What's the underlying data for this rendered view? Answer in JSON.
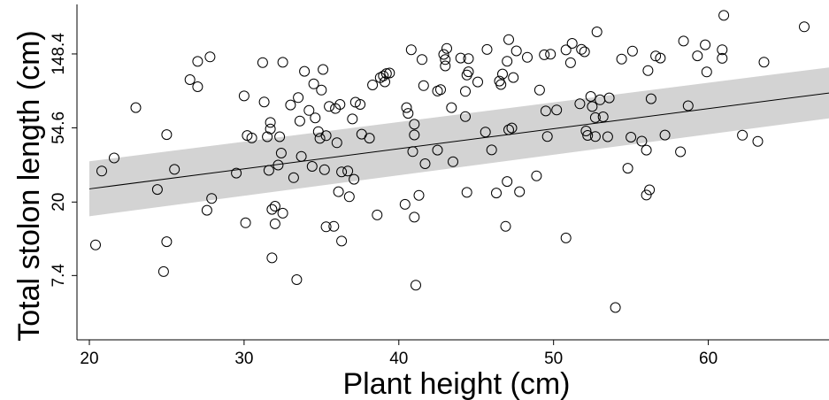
{
  "chart_data": {
    "type": "scatter",
    "title": "",
    "xlabel": "Plant height (cm)",
    "ylabel": "Total stolon length (cm)",
    "y_scale": "log",
    "xlim": [
      19.2,
      67.8
    ],
    "ylim": [
      3.1,
      290
    ],
    "x_ticks": [
      20,
      30,
      40,
      50,
      60
    ],
    "x_tick_labels": [
      "20",
      "30",
      "40",
      "50",
      "60"
    ],
    "y_ticks": [
      7.4,
      20,
      54.6,
      148.4
    ],
    "y_tick_labels": [
      "7.4",
      "20",
      "54.6",
      "148.4"
    ],
    "grid": false,
    "legend": "none",
    "colors": {
      "points": "#000000",
      "fit_line": "#000000",
      "confidence_band": "#d3d3d3"
    },
    "fit": {
      "type": "linear on log scale",
      "x": [
        20,
        67.8
      ],
      "y": [
        23.9,
        87.5
      ],
      "ci_lower": [
        16.5,
        62.1
      ],
      "ci_upper": [
        34.7,
        123.6
      ]
    },
    "points": [
      [
        20.4,
        11.2
      ],
      [
        20.8,
        30.4
      ],
      [
        21.6,
        36.3
      ],
      [
        23,
        71.8
      ],
      [
        24.4,
        23.7
      ],
      [
        24.8,
        7.8
      ],
      [
        25,
        11.7
      ],
      [
        25,
        49.8
      ],
      [
        25.5,
        31.1
      ],
      [
        26.5,
        104.8
      ],
      [
        27,
        95.2
      ],
      [
        27,
        134.1
      ],
      [
        27.6,
        17.9
      ],
      [
        27.8,
        142.5
      ],
      [
        27.9,
        21
      ],
      [
        29.5,
        29.6
      ],
      [
        30,
        84.1
      ],
      [
        30.1,
        15.1
      ],
      [
        30.2,
        49.2
      ],
      [
        30.5,
        47.6
      ],
      [
        31.2,
        132.1
      ],
      [
        31.3,
        77.5
      ],
      [
        31.5,
        48.4
      ],
      [
        31.6,
        30.7
      ],
      [
        31.7,
        58.7
      ],
      [
        31.7,
        53.8
      ],
      [
        31.8,
        9.4
      ],
      [
        31.8,
        18.1
      ],
      [
        32,
        14.9
      ],
      [
        32,
        18.9
      ],
      [
        32.2,
        33
      ],
      [
        32.3,
        48.4
      ],
      [
        32.4,
        38.8
      ],
      [
        32.5,
        17.2
      ],
      [
        32.5,
        132.5
      ],
      [
        33,
        74.4
      ],
      [
        33.2,
        27.8
      ],
      [
        33.4,
        7
      ],
      [
        33.5,
        82.2
      ],
      [
        33.6,
        59.9
      ],
      [
        33.7,
        37.1
      ],
      [
        33.9,
        117.3
      ],
      [
        34.2,
        69.1
      ],
      [
        34.4,
        32.4
      ],
      [
        34.5,
        99
      ],
      [
        34.6,
        62.5
      ],
      [
        34.8,
        51.9
      ],
      [
        34.9,
        47.3
      ],
      [
        35,
        91
      ],
      [
        35.1,
        120.2
      ],
      [
        35.2,
        31
      ],
      [
        35.3,
        14.3
      ],
      [
        35.3,
        49.1
      ],
      [
        35.5,
        72.9
      ],
      [
        35.8,
        14.4
      ],
      [
        35.9,
        70.9
      ],
      [
        36,
        44.6
      ],
      [
        36.1,
        23
      ],
      [
        36.2,
        74.9
      ],
      [
        36.3,
        30.1
      ],
      [
        36.3,
        11.8
      ],
      [
        36.7,
        30.4
      ],
      [
        36.8,
        21.5
      ],
      [
        37,
        61.6
      ],
      [
        37.1,
        27.2
      ],
      [
        37.2,
        77.2
      ],
      [
        37.5,
        74.9
      ],
      [
        37.6,
        50.1
      ],
      [
        38.1,
        47.5
      ],
      [
        38.3,
        97.5
      ],
      [
        38.6,
        16.8
      ],
      [
        38.8,
        107.7
      ],
      [
        39,
        110.3
      ],
      [
        39.1,
        101.7
      ],
      [
        39.2,
        113.8
      ],
      [
        39.4,
        114.7
      ],
      [
        40.4,
        19.4
      ],
      [
        40.5,
        71.8
      ],
      [
        40.6,
        66.4
      ],
      [
        40.8,
        157.1
      ],
      [
        40.9,
        39.6
      ],
      [
        41,
        16.3
      ],
      [
        41,
        49.6
      ],
      [
        41,
        57.3
      ],
      [
        41.1,
        6.5
      ],
      [
        41.3,
        21.9
      ],
      [
        41.5,
        137.6
      ],
      [
        41.6,
        96.6
      ],
      [
        41.7,
        33.6
      ],
      [
        42.5,
        89.8
      ],
      [
        42.5,
        40.4
      ],
      [
        42.7,
        91.5
      ],
      [
        42.9,
        147.5
      ],
      [
        43,
        126.1
      ],
      [
        43,
        137.6
      ],
      [
        43.1,
        159.9
      ],
      [
        43.4,
        71.8
      ],
      [
        43.5,
        34.5
      ],
      [
        44,
        140.4
      ],
      [
        44.3,
        89.4
      ],
      [
        44.3,
        63.6
      ],
      [
        44.4,
        111.7
      ],
      [
        44.4,
        22.8
      ],
      [
        44.5,
        116.6
      ],
      [
        44.5,
        139.3
      ],
      [
        45.1,
        101.6
      ],
      [
        45.6,
        51.6
      ],
      [
        45.7,
        157.6
      ],
      [
        46,
        40.5
      ],
      [
        46.3,
        22.6
      ],
      [
        46.5,
        102.8
      ],
      [
        46.6,
        98.1
      ],
      [
        46.7,
        113.1
      ],
      [
        46.9,
        14.4
      ],
      [
        47,
        26.4
      ],
      [
        47,
        134.5
      ],
      [
        47.1,
        53.2
      ],
      [
        47.1,
        180.3
      ],
      [
        47.3,
        54.5
      ],
      [
        47.4,
        107.8
      ],
      [
        47.6,
        154.7
      ],
      [
        47.8,
        23
      ],
      [
        48.3,
        141.9
      ],
      [
        48.9,
        28.5
      ],
      [
        49.1,
        91.1
      ],
      [
        49.4,
        146.7
      ],
      [
        49.5,
        68.6
      ],
      [
        49.6,
        48.6
      ],
      [
        49.8,
        147.9
      ],
      [
        50.2,
        69.6
      ],
      [
        50.8,
        12.3
      ],
      [
        50.8,
        156.7
      ],
      [
        51.1,
        131.7
      ],
      [
        51.2,
        171.3
      ],
      [
        51.7,
        75.6
      ],
      [
        51.8,
        157.8
      ],
      [
        52,
        152.9
      ],
      [
        52.1,
        52.3
      ],
      [
        52.2,
        49.3
      ],
      [
        52.4,
        83.5
      ],
      [
        52.5,
        72.8
      ],
      [
        52.7,
        48.6
      ],
      [
        52.7,
        62.7
      ],
      [
        52.8,
        200
      ],
      [
        53,
        79.8
      ],
      [
        53.2,
        63.4
      ],
      [
        53.5,
        48.4
      ],
      [
        53.6,
        81.9
      ],
      [
        54,
        4.8
      ],
      [
        54.4,
        138.5
      ],
      [
        54.8,
        31.6
      ],
      [
        55,
        48.1
      ],
      [
        55.1,
        154.2
      ],
      [
        55.7,
        45.6
      ],
      [
        56,
        40.4
      ],
      [
        56,
        22
      ],
      [
        56.1,
        118.5
      ],
      [
        56.2,
        23.6
      ],
      [
        56.3,
        80.9
      ],
      [
        56.6,
        144.2
      ],
      [
        56.9,
        140.4
      ],
      [
        57.2,
        49.5
      ],
      [
        58.2,
        39.5
      ],
      [
        58.4,
        176.7
      ],
      [
        58.7,
        73.6
      ],
      [
        59.3,
        144.6
      ],
      [
        59.8,
        167.9
      ],
      [
        59.9,
        116.3
      ],
      [
        60.9,
        157
      ],
      [
        60.9,
        139.8
      ],
      [
        61,
        250
      ],
      [
        62.2,
        49.4
      ],
      [
        63.2,
        45.5
      ],
      [
        63.6,
        132.9
      ],
      [
        66.2,
        214.1
      ]
    ]
  }
}
